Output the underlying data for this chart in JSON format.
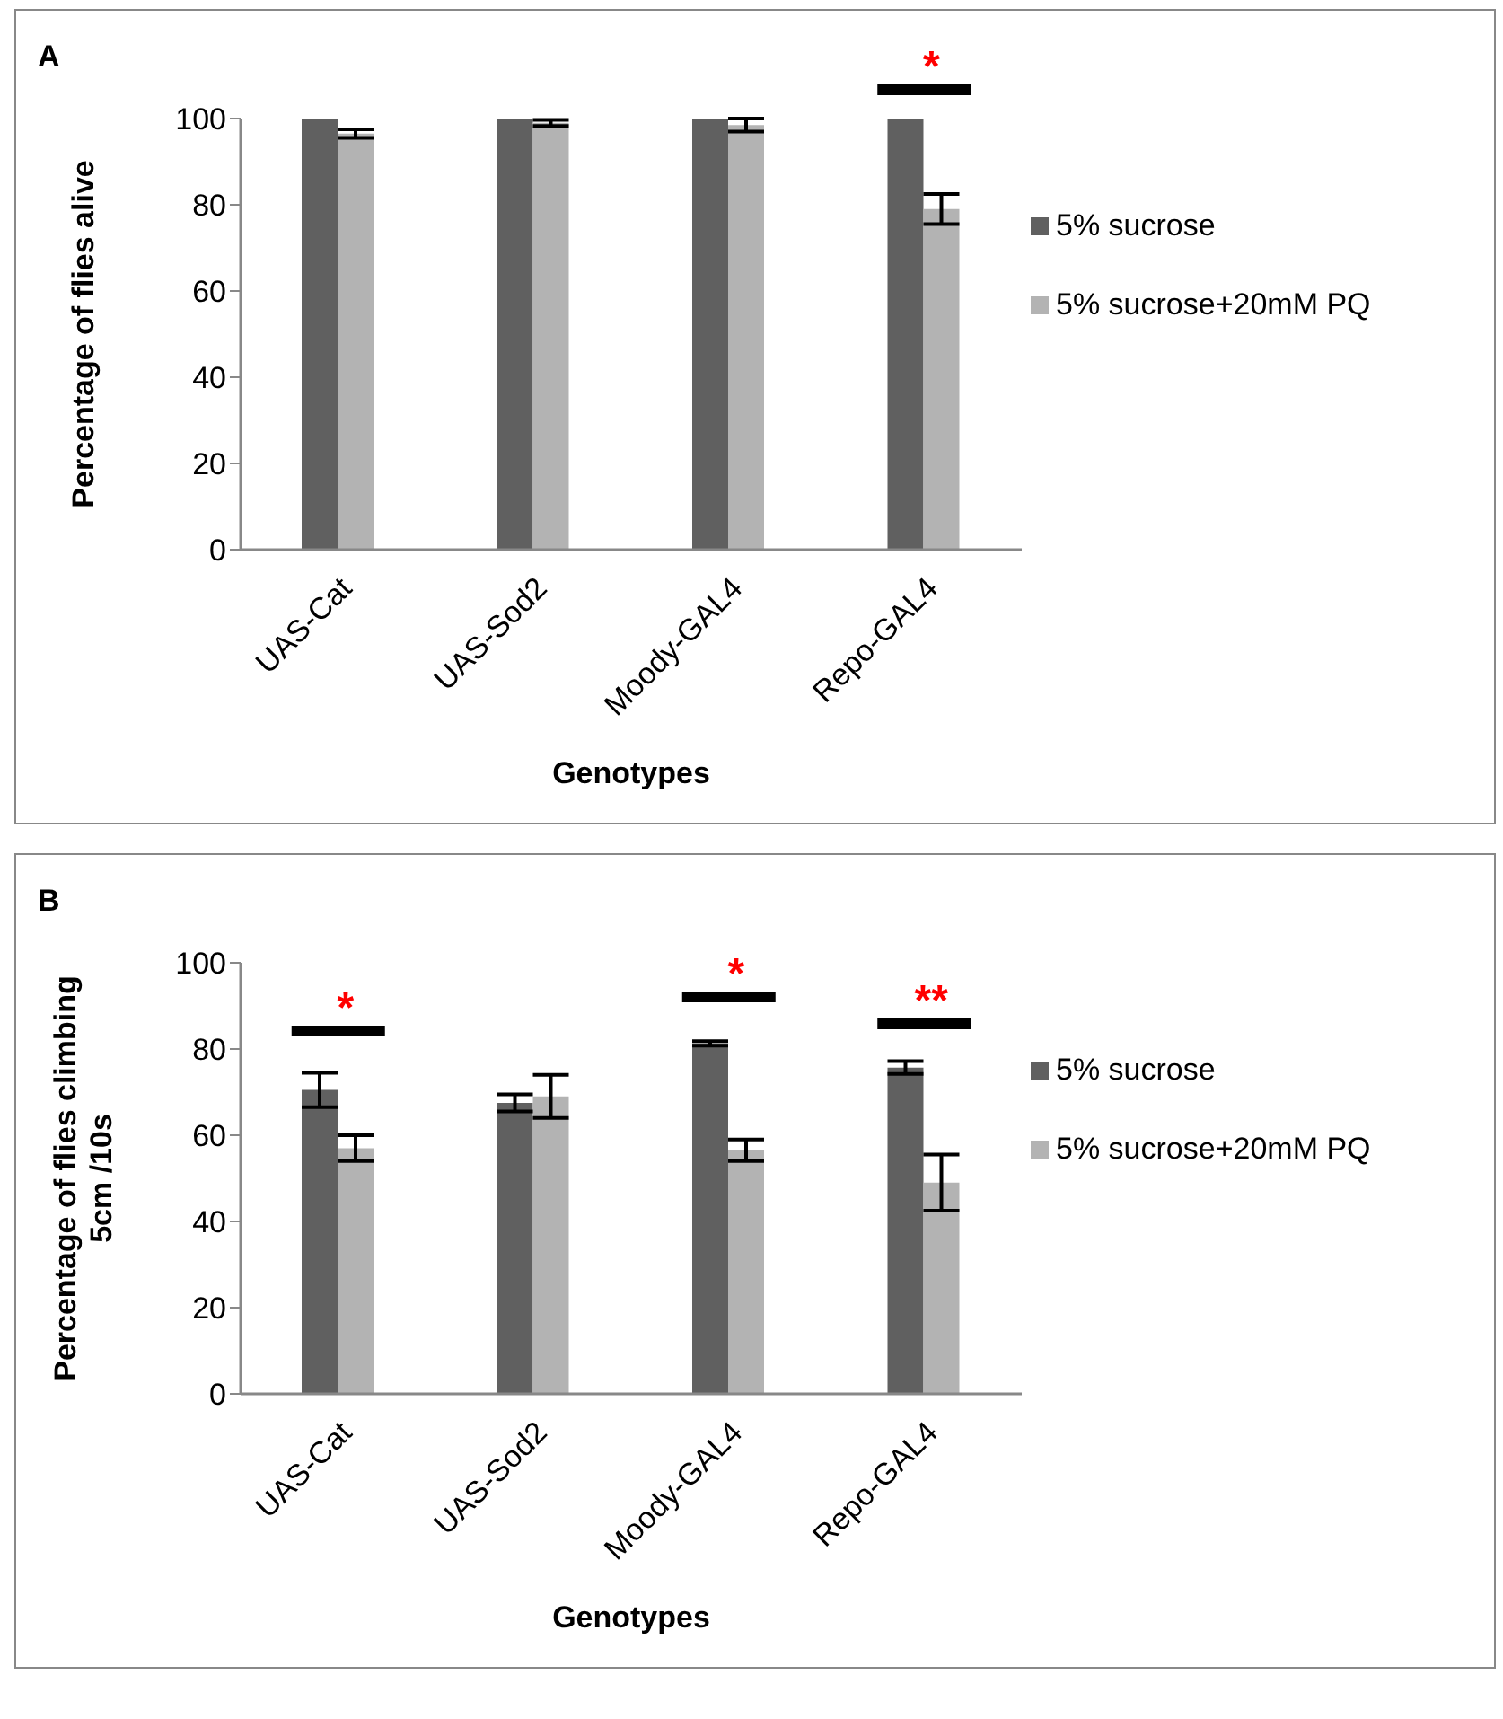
{
  "chart_data": [
    {
      "type": "bar",
      "title": "A",
      "xlabel": "Genotypes",
      "ylabel": "Percentage of flies alive",
      "categories": [
        "UAS-Cat",
        "UAS-Sod2",
        "Moody-GAL4",
        "Repo-GAL4"
      ],
      "series": [
        {
          "name": "5% sucrose",
          "color": "#606060",
          "values": [
            100,
            100,
            100,
            100
          ],
          "errors": [
            0,
            0,
            0,
            0
          ]
        },
        {
          "name": "5% sucrose+20mM PQ",
          "color": "#b3b3b3",
          "values": [
            96.5,
            99,
            98.5,
            79
          ],
          "errors": [
            1,
            0.7,
            1.5,
            3.5
          ]
        }
      ],
      "ylim": [
        0,
        100
      ],
      "yticks": [
        0,
        20,
        40,
        60,
        80,
        100
      ],
      "grid": false,
      "legend": "right",
      "annotations": [
        "*"
      ]
    },
    {
      "type": "bar",
      "title": "B",
      "xlabel": "Genotypes",
      "ylabel": "Percentage of flies climbing\n5cm /10s",
      "categories": [
        "UAS-Cat",
        "UAS-Sod2",
        "Moody-GAL4",
        "Repo-GAL4"
      ],
      "series": [
        {
          "name": "5% sucrose",
          "color": "#606060",
          "values": [
            70.5,
            67.5,
            81.3,
            75.7
          ],
          "errors": [
            4,
            2,
            0.5,
            1.5
          ]
        },
        {
          "name": "5% sucrose+20mM PQ",
          "color": "#b3b3b3",
          "values": [
            57,
            69,
            56.5,
            49
          ],
          "errors": [
            3,
            5,
            2.5,
            6.5
          ]
        }
      ],
      "ylim": [
        0,
        100
      ],
      "yticks": [
        0,
        20,
        40,
        60,
        80,
        100
      ],
      "grid": false,
      "legend": "right",
      "annotations": [
        "*",
        "*",
        "**"
      ]
    }
  ]
}
